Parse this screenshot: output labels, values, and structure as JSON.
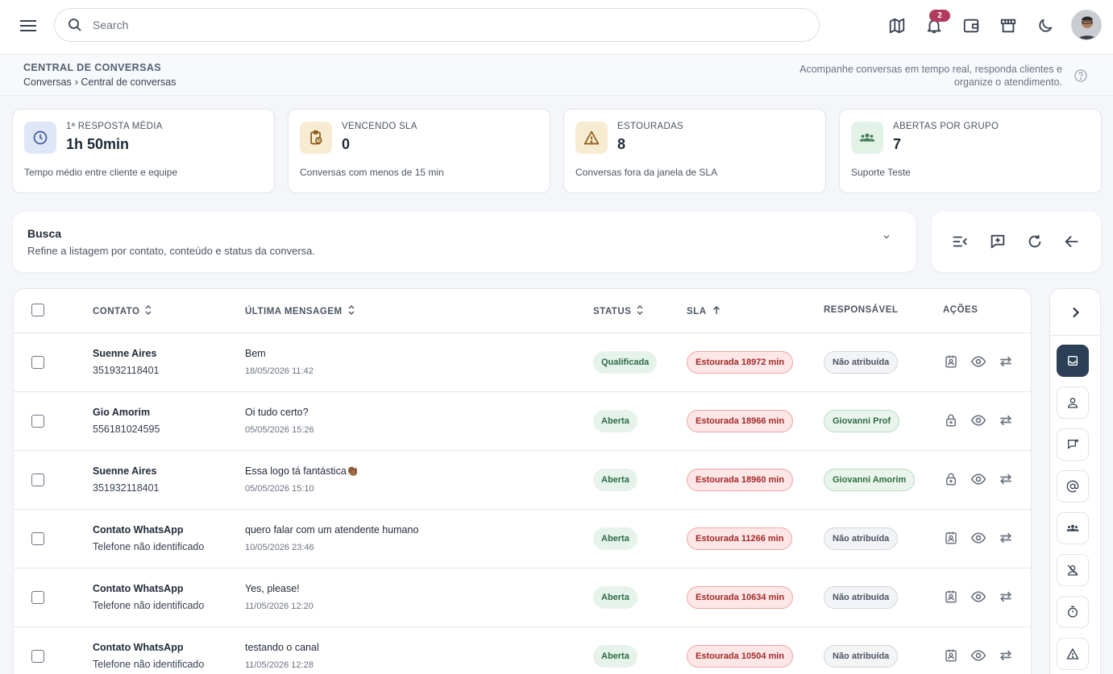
{
  "header": {
    "search_placeholder": "Search",
    "notification_count": "2",
    "icons": [
      "menu-icon",
      "search-icon",
      "map-icon",
      "bell-icon",
      "wallet-icon",
      "store-icon",
      "moon-icon",
      "user-avatar"
    ]
  },
  "page": {
    "title": "CENTRAL DE CONVERSAS",
    "breadcrumb": [
      "Conversas",
      "› Central de conversas"
    ],
    "description": "Acompanhe conversas em tempo real, responda clientes e organize o atendimento."
  },
  "stats": [
    {
      "label": "1ª RESPOSTA MÉDIA",
      "value": "1h 50min",
      "desc": "Tempo médio entre cliente e equipe",
      "icon": "clock-icon",
      "color": "#dfe6f7"
    },
    {
      "label": "VENCENDO SLA",
      "value": "0",
      "desc": "Conversas com menos de 15 min",
      "icon": "clipboard-clock-icon",
      "color": "#f7ebd2"
    },
    {
      "label": "ESTOURADAS",
      "value": "8",
      "desc": "Conversas fora da janela de SLA",
      "icon": "warning-icon",
      "color": "#f7ebd2"
    },
    {
      "label": "ABERTAS POR GRUPO",
      "value": "7",
      "desc": "Suporte Teste",
      "icon": "group-icon",
      "color": "#e2f2e6"
    }
  ],
  "filter": {
    "title": "Busca",
    "subtitle": "Refine a listagem por contato, conteúdo e status da conversa."
  },
  "table": {
    "columns": {
      "contact": "CONTATO",
      "last_message": "ÚLTIMA MENSAGEM",
      "status": "STATUS",
      "sla": "SLA",
      "responsible": "RESPONSÁVEL",
      "actions": "AÇÕES"
    },
    "rows": [
      {
        "name": "Suenne Aires",
        "phone": "351932118401",
        "message": "Bem",
        "date": "18/05/2026 11:42",
        "status": "Qualificada",
        "sla": "Estourada 18972 min",
        "responsible": "Não atribuída",
        "assigned": false,
        "locked": false
      },
      {
        "name": "Gio Amorim",
        "phone": "556181024595",
        "message": "Oi tudo certo?",
        "date": "05/05/2026 15:26",
        "status": "Aberta",
        "sla": "Estourada 18966 min",
        "responsible": "Giovanni Prof",
        "assigned": true,
        "locked": true
      },
      {
        "name": "Suenne Aires",
        "phone": "351932118401",
        "message": "Essa logo tá fantástica👏🏾",
        "date": "05/05/2026 15:10",
        "status": "Aberta",
        "sla": "Estourada 18960 min",
        "responsible": "Giovanni Amorim",
        "assigned": true,
        "locked": true
      },
      {
        "name": "Contato WhatsApp",
        "phone": "Telefone não identificado",
        "message": "quero falar com um atendente humano",
        "date": "10/05/2026 23:46",
        "status": "Aberta",
        "sla": "Estourada 11266 min",
        "responsible": "Não atribuída",
        "assigned": false,
        "locked": false
      },
      {
        "name": "Contato WhatsApp",
        "phone": "Telefone não identificado",
        "message": "Yes, please!",
        "date": "11/05/2026 12:20",
        "status": "Aberta",
        "sla": "Estourada 10634 min",
        "responsible": "Não atribuída",
        "assigned": false,
        "locked": false
      },
      {
        "name": "Contato WhatsApp",
        "phone": "Telefone não identificado",
        "message": "testando o canal",
        "date": "11/05/2026 12:28",
        "status": "Aberta",
        "sla": "Estourada 10504 min",
        "responsible": "Não atribuída",
        "assigned": false,
        "locked": false
      }
    ]
  },
  "rail": {
    "icons": [
      "inbox-icon",
      "user-icon",
      "chat-icon",
      "at-sign-icon",
      "group-icon",
      "user-off-icon",
      "timer-icon",
      "warning-icon"
    ]
  }
}
